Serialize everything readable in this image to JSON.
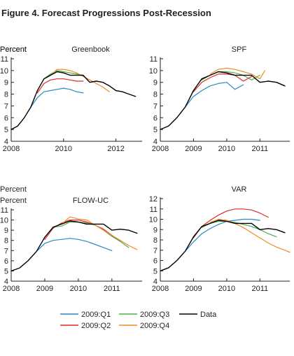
{
  "figure": {
    "title": "Figure 4. Forecast Progressions Post-Recession"
  },
  "legend": [
    {
      "name": "2009:Q1",
      "color": "#2a89c3"
    },
    {
      "name": "2009:Q3",
      "color": "#4daf4a"
    },
    {
      "name": "Data",
      "color": "#000000"
    },
    {
      "name": "2009:Q2",
      "color": "#e0282c"
    },
    {
      "name": "2009:Q4",
      "color": "#f08a24"
    }
  ],
  "chart_data": [
    {
      "type": "line",
      "title": "Greenbook",
      "ylabel": "Percent",
      "ylim": [
        4,
        11
      ],
      "xlim": [
        2008,
        2013.0
      ],
      "yticks": [
        "4",
        "5",
        "6",
        "7",
        "8",
        "9",
        "10",
        "11"
      ],
      "xticks": [
        {
          "label": "2008",
          "x": 2008
        },
        {
          "label": "2010",
          "x": 2010
        },
        {
          "label": "2012",
          "x": 2012
        }
      ],
      "series": [
        {
          "name": "Data",
          "color": "#000000",
          "x": [
            2008.0,
            2008.25,
            2008.5,
            2008.75,
            2009.0,
            2009.25,
            2009.5,
            2009.75,
            2010.0,
            2010.25,
            2010.5,
            2010.75,
            2011.0,
            2011.25,
            2011.5,
            2011.75,
            2012.0,
            2012.25,
            2012.5,
            2012.75
          ],
          "y": [
            5.0,
            5.3,
            6.0,
            6.9,
            8.3,
            9.3,
            9.6,
            9.9,
            9.8,
            9.6,
            9.6,
            9.6,
            9.0,
            9.1,
            9.0,
            8.7,
            8.3,
            8.2,
            8.0,
            7.8
          ]
        },
        {
          "name": "2009:Q1",
          "color": "#2a89c3",
          "x": [
            2008.75,
            2009.0,
            2009.25,
            2009.5,
            2009.75,
            2010.0,
            2010.25,
            2010.5,
            2010.75
          ],
          "y": [
            6.9,
            7.7,
            8.2,
            8.3,
            8.4,
            8.5,
            8.4,
            8.2,
            8.1
          ]
        },
        {
          "name": "2009:Q2",
          "color": "#e0282c",
          "x": [
            2009.0,
            2009.25,
            2009.5,
            2009.75,
            2010.0,
            2010.25,
            2010.5,
            2010.75
          ],
          "y": [
            8.1,
            8.9,
            9.2,
            9.3,
            9.3,
            9.2,
            9.1,
            9.1
          ]
        },
        {
          "name": "2009:Q3",
          "color": "#4daf4a",
          "x": [
            2009.25,
            2009.5,
            2009.75,
            2010.0,
            2010.25,
            2010.5,
            2010.75
          ],
          "y": [
            9.3,
            9.7,
            10.0,
            9.9,
            9.8,
            9.7,
            9.6
          ]
        },
        {
          "name": "2009:Q4",
          "color": "#f08a24",
          "x": [
            2009.5,
            2009.75,
            2010.0,
            2010.25,
            2010.5,
            2010.75,
            2011.0,
            2011.25,
            2011.5,
            2011.75
          ],
          "y": [
            9.6,
            10.1,
            10.1,
            10.0,
            9.8,
            9.5,
            9.2,
            8.9,
            8.6,
            8.2
          ]
        }
      ]
    },
    {
      "type": "line",
      "title": "SPF",
      "ylabel": "Percent",
      "ylim": [
        4,
        11
      ],
      "xlim": [
        2008,
        2011.9
      ],
      "yticks": [
        "4",
        "5",
        "6",
        "7",
        "8",
        "9",
        "10",
        "11"
      ],
      "xticks": [
        {
          "label": "2008",
          "x": 2008
        },
        {
          "label": "2009",
          "x": 2009
        },
        {
          "label": "2010",
          "x": 2010
        },
        {
          "label": "2011",
          "x": 2011
        }
      ],
      "series": [
        {
          "name": "Data",
          "color": "#000000",
          "x": [
            2008.0,
            2008.25,
            2008.5,
            2008.75,
            2009.0,
            2009.25,
            2009.5,
            2009.75,
            2010.0,
            2010.25,
            2010.5,
            2010.75,
            2011.0,
            2011.25,
            2011.5,
            2011.75
          ],
          "y": [
            5.0,
            5.3,
            6.0,
            6.9,
            8.3,
            9.3,
            9.6,
            9.9,
            9.8,
            9.6,
            9.6,
            9.6,
            9.0,
            9.1,
            9.0,
            8.7
          ]
        },
        {
          "name": "2009:Q1",
          "color": "#2a89c3",
          "x": [
            2008.75,
            2009.0,
            2009.25,
            2009.5,
            2009.75,
            2010.0,
            2010.25,
            2010.5
          ],
          "y": [
            6.9,
            7.8,
            8.3,
            8.7,
            8.9,
            9.0,
            8.4,
            8.8
          ]
        },
        {
          "name": "2009:Q2",
          "color": "#e0282c",
          "x": [
            2009.0,
            2009.25,
            2009.5,
            2009.75,
            2010.0,
            2010.25,
            2010.5,
            2010.75
          ],
          "y": [
            8.2,
            9.0,
            9.4,
            9.7,
            9.7,
            9.6,
            9.1,
            9.5
          ]
        },
        {
          "name": "2009:Q3",
          "color": "#4daf4a",
          "x": [
            2009.25,
            2009.5,
            2009.75,
            2010.0,
            2010.25,
            2010.5,
            2010.75,
            2011.0
          ],
          "y": [
            9.2,
            9.6,
            9.9,
            9.9,
            9.8,
            9.6,
            9.2,
            9.6
          ]
        },
        {
          "name": "2009:Q4",
          "color": "#f08a24",
          "x": [
            2009.5,
            2009.75,
            2010.0,
            2010.25,
            2010.5,
            2010.75,
            2011.0,
            2011.15
          ],
          "y": [
            9.7,
            10.1,
            10.2,
            10.1,
            9.9,
            9.7,
            9.3,
            10.0
          ]
        }
      ]
    },
    {
      "type": "line",
      "title": "FLOW-UC",
      "ylabel": "Percent",
      "ylim": [
        4,
        11
      ],
      "xlim": [
        2008,
        2011.9
      ],
      "yticks": [
        "4",
        "5",
        "6",
        "7",
        "8",
        "9",
        "10",
        "11"
      ],
      "xticks": [
        {
          "label": "2008",
          "x": 2008
        },
        {
          "label": "2009",
          "x": 2009
        },
        {
          "label": "2010",
          "x": 2010
        },
        {
          "label": "2011",
          "x": 2011
        }
      ],
      "series": [
        {
          "name": "Data",
          "color": "#000000",
          "x": [
            2008.0,
            2008.25,
            2008.5,
            2008.75,
            2009.0,
            2009.25,
            2009.5,
            2009.75,
            2010.0,
            2010.25,
            2010.5,
            2010.75,
            2011.0,
            2011.25,
            2011.5,
            2011.75
          ],
          "y": [
            5.0,
            5.3,
            6.0,
            6.9,
            8.3,
            9.3,
            9.6,
            9.9,
            9.8,
            9.6,
            9.6,
            9.6,
            9.0,
            9.1,
            9.0,
            8.7
          ]
        },
        {
          "name": "2009:Q1",
          "color": "#2a89c3",
          "x": [
            2008.75,
            2009.0,
            2009.25,
            2009.5,
            2009.75,
            2010.0,
            2010.25,
            2010.5,
            2010.75,
            2011.0
          ],
          "y": [
            6.9,
            7.7,
            8.0,
            8.1,
            8.2,
            8.1,
            7.9,
            7.6,
            7.3,
            7.0
          ]
        },
        {
          "name": "2009:Q2",
          "color": "#e0282c",
          "x": [
            2009.0,
            2009.25,
            2009.5,
            2009.75,
            2010.0,
            2010.25,
            2010.5,
            2010.75,
            2011.0,
            2011.25
          ],
          "y": [
            8.1,
            9.2,
            9.7,
            10.0,
            10.0,
            9.8,
            9.5,
            9.1,
            8.5,
            7.9
          ]
        },
        {
          "name": "2009:Q3",
          "color": "#4daf4a",
          "x": [
            2009.25,
            2009.5,
            2009.75,
            2010.0,
            2010.25,
            2010.5,
            2010.75,
            2011.0,
            2011.25,
            2011.5
          ],
          "y": [
            9.3,
            9.4,
            9.8,
            9.8,
            9.7,
            9.5,
            9.0,
            8.4,
            7.9,
            7.3
          ]
        },
        {
          "name": "2009:Q4",
          "color": "#f08a24",
          "x": [
            2009.5,
            2009.75,
            2010.0,
            2010.25,
            2010.5,
            2010.75,
            2011.0,
            2011.25,
            2011.5,
            2011.75
          ],
          "y": [
            9.6,
            10.3,
            10.1,
            10.0,
            9.5,
            9.0,
            8.5,
            8.0,
            7.5,
            7.1
          ]
        }
      ]
    },
    {
      "type": "line",
      "title": "VAR",
      "ylabel": "Percent",
      "ylim": [
        4,
        12
      ],
      "xlim": [
        2008,
        2011.9
      ],
      "yticks": [
        "4",
        "5",
        "6",
        "7",
        "8",
        "9",
        "10",
        "11",
        "12"
      ],
      "xticks": [
        {
          "label": "2008",
          "x": 2008
        },
        {
          "label": "2009",
          "x": 2009
        },
        {
          "label": "2010",
          "x": 2010
        },
        {
          "label": "2011",
          "x": 2011
        }
      ],
      "series": [
        {
          "name": "Data",
          "color": "#000000",
          "x": [
            2008.0,
            2008.25,
            2008.5,
            2008.75,
            2009.0,
            2009.25,
            2009.5,
            2009.75,
            2010.0,
            2010.25,
            2010.5,
            2010.75,
            2011.0,
            2011.25,
            2011.5,
            2011.75
          ],
          "y": [
            5.0,
            5.3,
            6.0,
            6.9,
            8.3,
            9.3,
            9.6,
            9.9,
            9.8,
            9.6,
            9.6,
            9.6,
            9.0,
            9.1,
            9.0,
            8.7
          ]
        },
        {
          "name": "2009:Q1",
          "color": "#2a89c3",
          "x": [
            2008.75,
            2009.0,
            2009.25,
            2009.5,
            2009.75,
            2010.0,
            2010.25,
            2010.5,
            2010.75,
            2011.0
          ],
          "y": [
            6.9,
            7.8,
            8.6,
            9.1,
            9.5,
            9.8,
            9.9,
            10.0,
            10.0,
            9.9
          ]
        },
        {
          "name": "2009:Q2",
          "color": "#e0282c",
          "x": [
            2009.0,
            2009.25,
            2009.5,
            2009.75,
            2010.0,
            2010.25,
            2010.5,
            2010.75,
            2011.0,
            2011.25
          ],
          "y": [
            8.2,
            9.3,
            9.9,
            10.4,
            10.8,
            11.0,
            11.0,
            10.9,
            10.6,
            10.2
          ]
        },
        {
          "name": "2009:Q3",
          "color": "#4daf4a",
          "x": [
            2009.25,
            2009.5,
            2009.75,
            2010.0,
            2010.25,
            2010.5,
            2010.75,
            2011.0,
            2011.25,
            2011.5
          ],
          "y": [
            9.2,
            9.6,
            9.8,
            9.8,
            9.7,
            9.5,
            9.3,
            9.0,
            8.6,
            8.3
          ]
        },
        {
          "name": "2009:Q4",
          "color": "#f08a24",
          "x": [
            2009.5,
            2009.75,
            2010.0,
            2010.25,
            2010.5,
            2010.75,
            2011.0,
            2011.25,
            2011.5,
            2011.75,
            2011.9
          ],
          "y": [
            9.7,
            10.0,
            9.9,
            9.6,
            9.2,
            8.7,
            8.2,
            7.7,
            7.3,
            7.0,
            6.8
          ]
        }
      ]
    }
  ]
}
